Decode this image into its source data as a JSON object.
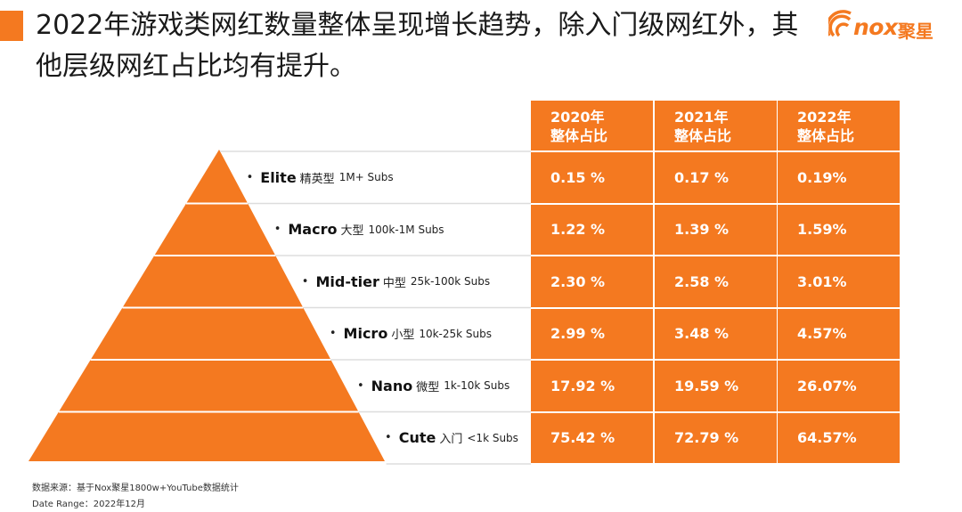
{
  "title": "2022年游戏类网红数量整体呈现增长趋势，除入门级网红外，其他层级网红占比均有提升。",
  "logo": {
    "brand": "nox",
    "cn": "聚星"
  },
  "table": {
    "headers": [
      {
        "year": "2020年",
        "label": "整体占比"
      },
      {
        "year": "2021年",
        "label": "整体占比"
      },
      {
        "year": "2022年",
        "label": "整体占比"
      }
    ]
  },
  "chart_data": {
    "type": "table",
    "categories": [
      "Elite",
      "Macro",
      "Mid-tier",
      "Micro",
      "Nano",
      "Cute"
    ],
    "levels": [
      {
        "bullet": "•",
        "name": "Elite",
        "cn": "精英型",
        "subs": "1M+ Subs",
        "values": [
          "0.15 %",
          "0.17 %",
          "0.19%"
        ]
      },
      {
        "bullet": "•",
        "name": "Macro",
        "cn": "大型",
        "subs": "100k-1M Subs",
        "values": [
          "1.22 %",
          "1.39 %",
          "1.59%"
        ]
      },
      {
        "bullet": "•",
        "name": "Mid-tier",
        "cn": "中型",
        "subs": "25k-100k Subs",
        "values": [
          "2.30 %",
          "2.58 %",
          "3.01%"
        ]
      },
      {
        "bullet": "•",
        "name": "Micro",
        "cn": "小型",
        "subs": "10k-25k Subs",
        "values": [
          "2.99 %",
          "3.48 %",
          "4.57%"
        ]
      },
      {
        "bullet": "•",
        "name": "Nano",
        "cn": "微型",
        "subs": "1k-10k Subs",
        "values": [
          "17.92 %",
          "19.59 %",
          "26.07%"
        ]
      },
      {
        "bullet": "•",
        "name": "Cute",
        "cn": "入门",
        "subs": "<1k Subs",
        "values": [
          "75.42 %",
          "72.79 %",
          "64.57%"
        ]
      }
    ],
    "series": [
      {
        "name": "2020年",
        "values": [
          0.15,
          1.22,
          2.3,
          2.99,
          17.92,
          75.42
        ]
      },
      {
        "name": "2021年",
        "values": [
          0.17,
          1.39,
          2.58,
          3.48,
          19.59,
          72.79
        ]
      },
      {
        "name": "2022年",
        "values": [
          0.19,
          1.59,
          3.01,
          4.57,
          26.07,
          64.57
        ]
      }
    ]
  },
  "footer": {
    "source": "数据来源：基于Nox聚星1800w+YouTube数据统计",
    "date": "Date Range：2022年12月"
  },
  "colors": {
    "accent": "#F47920",
    "divider": "#ffffff"
  }
}
